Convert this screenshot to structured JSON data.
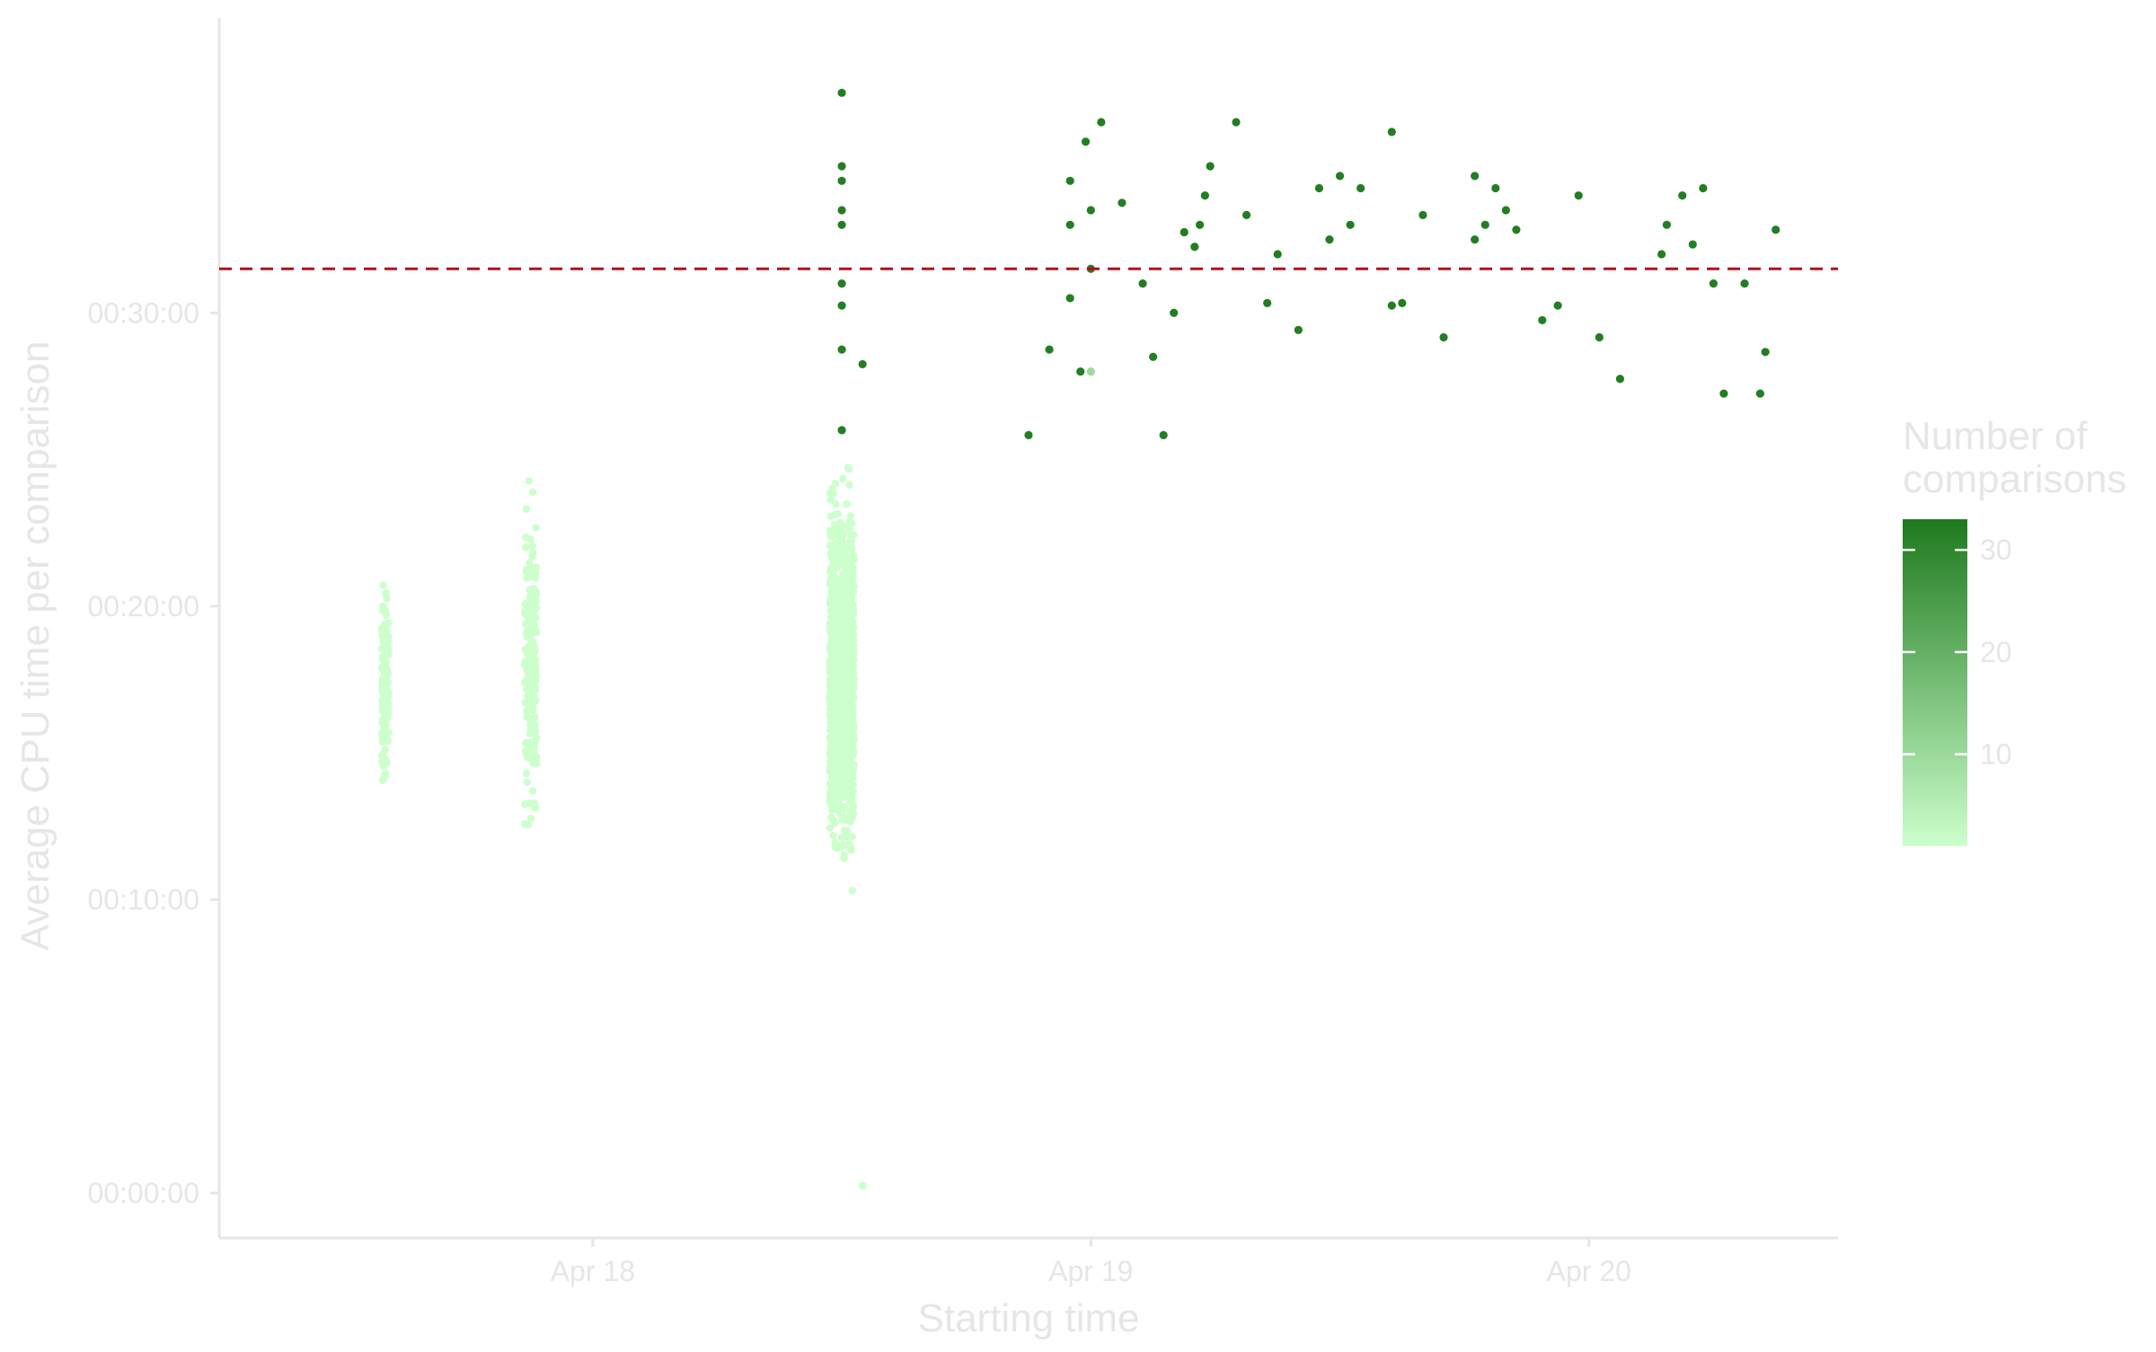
{
  "chart_data": {
    "type": "scatter",
    "title": "",
    "xlabel": "Starting time",
    "ylabel": "Average CPU time per comparison",
    "x_unit": "date-time (April)",
    "x_ticks": [
      {
        "label": "Apr 18",
        "value": "Apr 18 00:00"
      },
      {
        "label": "Apr 19",
        "value": "Apr 19 00:00"
      },
      {
        "label": "Apr 20",
        "value": "Apr 20 00:00"
      }
    ],
    "xlim": [
      "Apr 17 06:00",
      "Apr 20 12:00"
    ],
    "y_ticks": [
      "00:00:00",
      "00:10:00",
      "00:20:00",
      "00:30:00"
    ],
    "ylim": [
      "00:00:00",
      "00:38:00"
    ],
    "grid": false,
    "reference_line": {
      "y": "00:31:30",
      "color": "#b0121b",
      "style": "dashed"
    },
    "color_scale": {
      "title": "Number of comparisons",
      "ticks": [
        10,
        20,
        30
      ],
      "range": [
        1,
        33
      ],
      "low_color": "#ccffcc",
      "high_color": "#1e7a1e"
    },
    "point_colors": {
      "low": "#ccffcc",
      "high": "#1e7a1e"
    },
    "clusters": [
      {
        "x": "Apr 17 14:00",
        "x_spread_min": 20,
        "n": 160,
        "y_range": [
          "00:13:30",
          "00:21:30"
        ],
        "comparisons": 1
      },
      {
        "x": "Apr 17 21:00",
        "x_spread_min": 35,
        "n": 210,
        "y_range": [
          "00:11:00",
          "00:25:20"
        ],
        "comparisons": 1
      },
      {
        "x": "Apr 18 12:00",
        "x_spread_min": 70,
        "n": 1400,
        "y_range": [
          "00:10:00",
          "00:25:20"
        ],
        "comparisons": 1
      }
    ],
    "points": [
      {
        "x": "Apr 18 12:00",
        "y": "00:37:30",
        "c": 32
      },
      {
        "x": "Apr 18 12:00",
        "y": "00:35:00",
        "c": 32
      },
      {
        "x": "Apr 18 12:00",
        "y": "00:34:30",
        "c": 32
      },
      {
        "x": "Apr 18 12:00",
        "y": "00:33:30",
        "c": 32
      },
      {
        "x": "Apr 18 12:00",
        "y": "00:33:00",
        "c": 32
      },
      {
        "x": "Apr 18 12:00",
        "y": "00:31:00",
        "c": 32
      },
      {
        "x": "Apr 18 12:00",
        "y": "00:30:15",
        "c": 32
      },
      {
        "x": "Apr 18 12:00",
        "y": "00:28:45",
        "c": 32
      },
      {
        "x": "Apr 18 12:00",
        "y": "00:26:00",
        "c": 32
      },
      {
        "x": "Apr 18 13:00",
        "y": "00:28:15",
        "c": 32
      },
      {
        "x": "Apr 18 13:00",
        "y": "00:00:15",
        "c": 1
      },
      {
        "x": "Apr 18 21:00",
        "y": "00:25:50",
        "c": 32
      },
      {
        "x": "Apr 18 22:00",
        "y": "00:28:45",
        "c": 32
      },
      {
        "x": "Apr 18 23:00",
        "y": "00:34:30",
        "c": 32
      },
      {
        "x": "Apr 18 23:00",
        "y": "00:33:00",
        "c": 32
      },
      {
        "x": "Apr 18 23:00",
        "y": "00:30:30",
        "c": 32
      },
      {
        "x": "Apr 18 23:30",
        "y": "00:28:00",
        "c": 32
      },
      {
        "x": "Apr 18 23:45",
        "y": "00:35:50",
        "c": 32
      },
      {
        "x": "Apr 19 00:00",
        "y": "00:33:30",
        "c": 32
      },
      {
        "x": "Apr 19 00:00",
        "y": "00:31:30",
        "c": 32
      },
      {
        "x": "Apr 19 00:00",
        "y": "00:28:00",
        "c": 10
      },
      {
        "x": "Apr 19 00:30",
        "y": "00:36:30",
        "c": 32
      },
      {
        "x": "Apr 19 01:30",
        "y": "00:33:45",
        "c": 32
      },
      {
        "x": "Apr 19 02:30",
        "y": "00:31:00",
        "c": 32
      },
      {
        "x": "Apr 19 03:00",
        "y": "00:28:30",
        "c": 32
      },
      {
        "x": "Apr 19 03:30",
        "y": "00:25:50",
        "c": 32
      },
      {
        "x": "Apr 19 04:00",
        "y": "00:30:00",
        "c": 32
      },
      {
        "x": "Apr 19 04:30",
        "y": "00:32:45",
        "c": 32
      },
      {
        "x": "Apr 19 05:00",
        "y": "00:32:15",
        "c": 32
      },
      {
        "x": "Apr 19 05:15",
        "y": "00:33:00",
        "c": 32
      },
      {
        "x": "Apr 19 05:30",
        "y": "00:34:00",
        "c": 32
      },
      {
        "x": "Apr 19 05:45",
        "y": "00:35:00",
        "c": 32
      },
      {
        "x": "Apr 19 07:00",
        "y": "00:36:30",
        "c": 32
      },
      {
        "x": "Apr 19 07:30",
        "y": "00:33:20",
        "c": 32
      },
      {
        "x": "Apr 19 08:30",
        "y": "00:30:20",
        "c": 32
      },
      {
        "x": "Apr 19 09:00",
        "y": "00:32:00",
        "c": 32
      },
      {
        "x": "Apr 19 10:00",
        "y": "00:29:25",
        "c": 32
      },
      {
        "x": "Apr 19 11:00",
        "y": "00:34:15",
        "c": 32
      },
      {
        "x": "Apr 19 11:30",
        "y": "00:32:30",
        "c": 32
      },
      {
        "x": "Apr 19 12:00",
        "y": "00:34:40",
        "c": 32
      },
      {
        "x": "Apr 19 12:30",
        "y": "00:33:00",
        "c": 32
      },
      {
        "x": "Apr 19 13:00",
        "y": "00:34:15",
        "c": 32
      },
      {
        "x": "Apr 19 14:30",
        "y": "00:36:10",
        "c": 32
      },
      {
        "x": "Apr 19 14:30",
        "y": "00:30:15",
        "c": 32
      },
      {
        "x": "Apr 19 15:00",
        "y": "00:30:20",
        "c": 32
      },
      {
        "x": "Apr 19 16:00",
        "y": "00:33:20",
        "c": 32
      },
      {
        "x": "Apr 19 17:00",
        "y": "00:29:10",
        "c": 32
      },
      {
        "x": "Apr 19 18:30",
        "y": "00:34:40",
        "c": 32
      },
      {
        "x": "Apr 19 18:30",
        "y": "00:32:30",
        "c": 32
      },
      {
        "x": "Apr 19 19:00",
        "y": "00:33:00",
        "c": 32
      },
      {
        "x": "Apr 19 19:30",
        "y": "00:34:15",
        "c": 32
      },
      {
        "x": "Apr 19 20:00",
        "y": "00:33:30",
        "c": 32
      },
      {
        "x": "Apr 19 20:30",
        "y": "00:32:50",
        "c": 32
      },
      {
        "x": "Apr 19 21:45",
        "y": "00:29:45",
        "c": 32
      },
      {
        "x": "Apr 19 22:30",
        "y": "00:30:15",
        "c": 32
      },
      {
        "x": "Apr 19 23:30",
        "y": "00:34:00",
        "c": 32
      },
      {
        "x": "Apr 20 00:30",
        "y": "00:29:10",
        "c": 32
      },
      {
        "x": "Apr 20 01:30",
        "y": "00:27:45",
        "c": 32
      },
      {
        "x": "Apr 20 03:30",
        "y": "00:32:00",
        "c": 32
      },
      {
        "x": "Apr 20 03:45",
        "y": "00:33:00",
        "c": 32
      },
      {
        "x": "Apr 20 04:30",
        "y": "00:34:00",
        "c": 32
      },
      {
        "x": "Apr 20 05:00",
        "y": "00:32:20",
        "c": 32
      },
      {
        "x": "Apr 20 05:30",
        "y": "00:34:15",
        "c": 32
      },
      {
        "x": "Apr 20 06:00",
        "y": "00:31:00",
        "c": 32
      },
      {
        "x": "Apr 20 06:30",
        "y": "00:27:15",
        "c": 32
      },
      {
        "x": "Apr 20 07:30",
        "y": "00:31:00",
        "c": 32
      },
      {
        "x": "Apr 20 08:15",
        "y": "00:27:15",
        "c": 32
      },
      {
        "x": "Apr 20 08:30",
        "y": "00:28:40",
        "c": 32
      },
      {
        "x": "Apr 20 09:00",
        "y": "00:32:50",
        "c": 32
      }
    ]
  }
}
